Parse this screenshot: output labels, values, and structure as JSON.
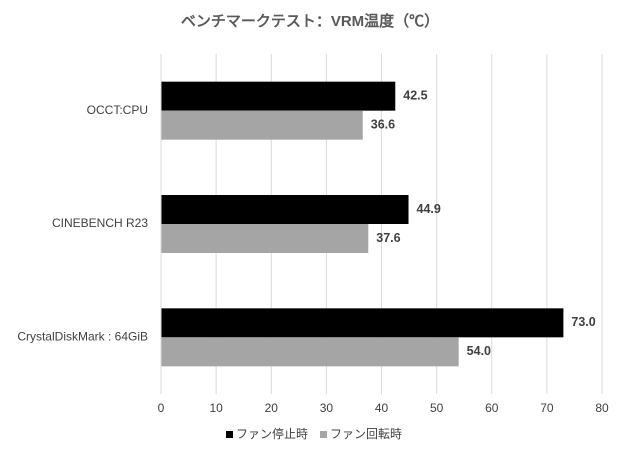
{
  "chart_data": {
    "type": "hbar",
    "title": "ベンチマークテスト：VRM温度（℃）",
    "categories": [
      "OCCT:CPU",
      "CINEBENCH R23",
      "CrystalDiskMark : 64GiB"
    ],
    "series": [
      {
        "name": "ファン停止時",
        "color": "#000000",
        "values": [
          42.5,
          44.9,
          73.0
        ],
        "value_labels": [
          "42.5",
          "44.9",
          "73.0"
        ]
      },
      {
        "name": "ファン回転時",
        "color": "#a5a5a5",
        "values": [
          36.6,
          37.6,
          54.0
        ],
        "value_labels": [
          "36.6",
          "37.6",
          "54.0"
        ]
      }
    ],
    "xlim": [
      0,
      80
    ],
    "xticks": [
      0,
      10,
      20,
      30,
      40,
      50,
      60,
      70,
      80
    ],
    "grid": true,
    "legend": "bottom"
  }
}
